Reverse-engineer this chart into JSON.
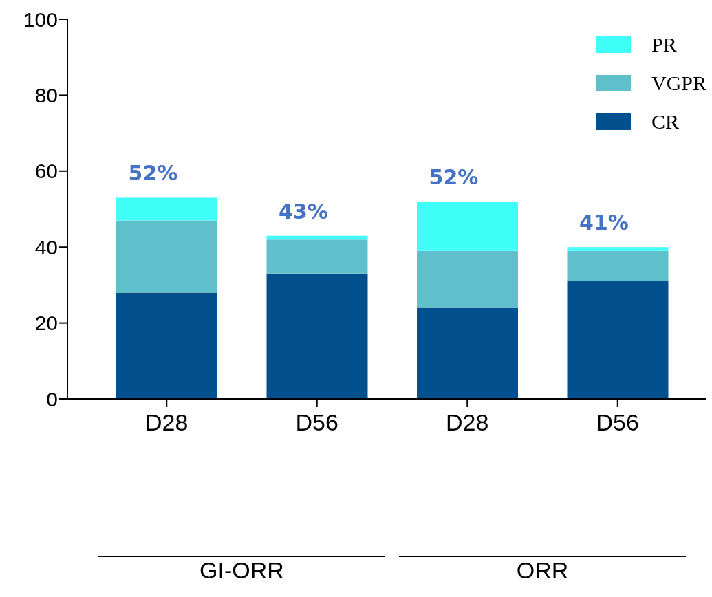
{
  "chart_data": {
    "type": "bar",
    "stacked": true,
    "categories": [
      "D28",
      "D56",
      "D28",
      "D56"
    ],
    "series": [
      {
        "name": "CR",
        "color": "#03508f",
        "values": [
          28,
          33,
          24,
          31
        ]
      },
      {
        "name": "VGPR",
        "color": "#5fbfcb",
        "values": [
          19,
          9,
          15,
          8
        ]
      },
      {
        "name": "PR",
        "color": "#3ffff8",
        "values": [
          6,
          1,
          13,
          1
        ]
      }
    ],
    "totals": [
      "52%",
      "43%",
      "52%",
      "41%"
    ],
    "annotations": [
      "GI-ORR",
      "ORR"
    ],
    "ylim": [
      0,
      100
    ],
    "yticks": [
      0,
      20,
      40,
      60,
      80,
      100
    ],
    "grid": false,
    "legend": "top right"
  }
}
